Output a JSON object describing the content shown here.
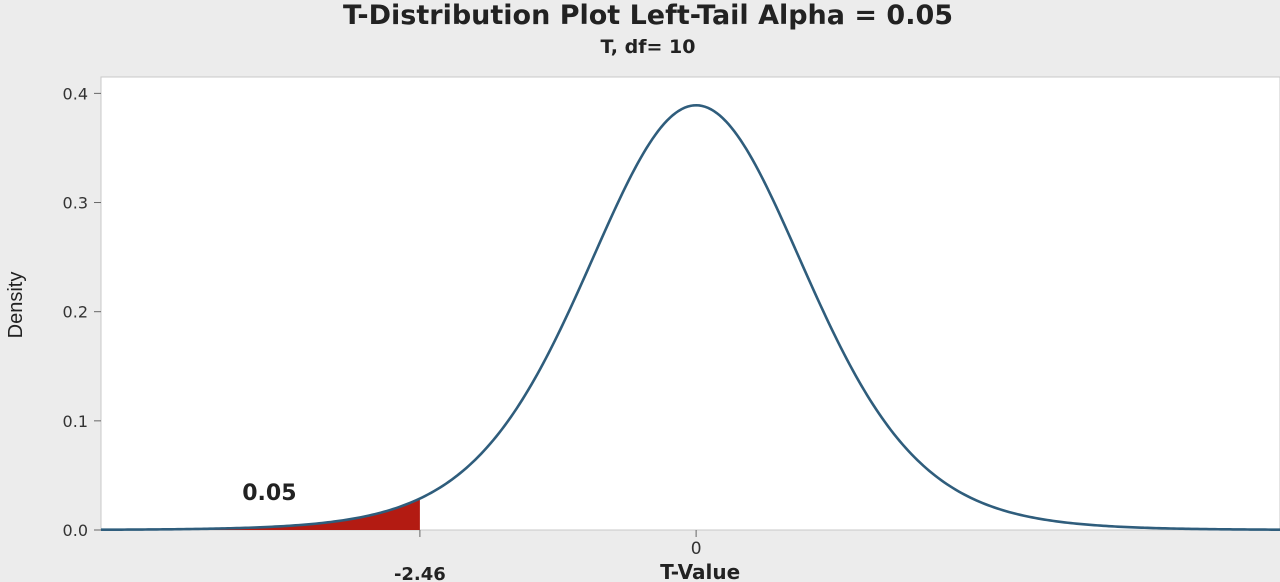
{
  "chart_data": {
    "type": "area",
    "title": "T-Distribution Plot Left-Tail Alpha = 0.05",
    "subtitle": "T, df= 10",
    "xlabel": "T-Value",
    "ylabel": "Density",
    "distribution": "t",
    "df": 10,
    "xlim": [
      -5.3,
      5.2
    ],
    "ylim": [
      0,
      0.415
    ],
    "y_ticks": [
      0.0,
      0.1,
      0.2,
      0.3,
      0.4
    ],
    "y_tick_labels": [
      "0.0",
      "0.1",
      "0.2",
      "0.3",
      "0.4"
    ],
    "x_marks": [
      {
        "value": 0,
        "label": "0"
      },
      {
        "value": -2.46,
        "label": "-2.46"
      }
    ],
    "shaded_region": {
      "from": -5.3,
      "to": -2.46,
      "area": 0.05,
      "label": "0.05",
      "label_x": -3.8,
      "label_y": 0.035
    },
    "grid": false,
    "legend": "none",
    "colors": {
      "curve": "#2f5d7c",
      "shade": "#b31b12",
      "plot_bg": "#ffffff",
      "outer_bg": "#ececec"
    }
  }
}
